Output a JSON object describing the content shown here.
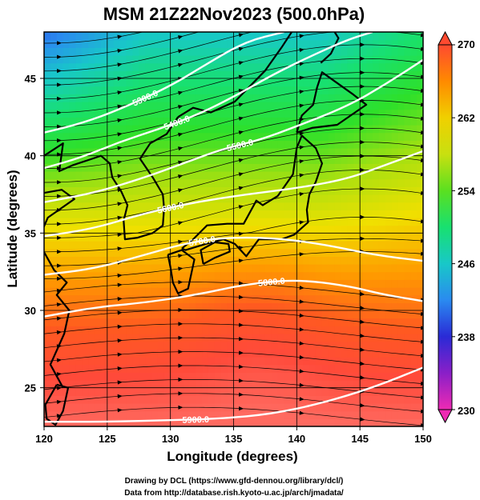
{
  "figure": {
    "title": "MSM 21Z22Nov2023 (500.0hPa)",
    "xlabel": "Longitude (degrees)",
    "ylabel": "Latitude  (degrees)",
    "credit_line1": "Drawing by DCL (https://www.gfd-dennou.org/library/dcl/)",
    "credit_line2": "Data from http://database.rish.kyoto-u.ac.jp/arch/jmadata/"
  },
  "chart_data": {
    "type": "heatmap",
    "xlim": [
      120,
      150
    ],
    "ylim": [
      22.5,
      48
    ],
    "x_ticks": [
      120,
      125,
      130,
      135,
      140,
      145,
      150
    ],
    "y_ticks": [
      25,
      30,
      35,
      40,
      45
    ],
    "grid": true,
    "colorbar": {
      "min": 230,
      "max": 270,
      "ticks": [
        230,
        238,
        246,
        254,
        262,
        270
      ],
      "labels": [
        "230",
        "238",
        "246",
        "254",
        "262",
        "270"
      ],
      "extend": "both"
    },
    "contours": [
      {
        "label": "5300.0",
        "points": [
          [
            120,
            41.5
          ],
          [
            123,
            42.1
          ],
          [
            126,
            43.0
          ],
          [
            130,
            44.5
          ],
          [
            133,
            46.0
          ],
          [
            136,
            47.4
          ],
          [
            139,
            48
          ]
        ]
      },
      {
        "label": "5400.0",
        "points": [
          [
            120,
            39.2
          ],
          [
            123,
            39.9
          ],
          [
            126,
            40.9
          ],
          [
            129,
            41.7
          ],
          [
            132,
            42.6
          ],
          [
            135,
            43.8
          ],
          [
            138,
            45.2
          ],
          [
            141,
            46.4
          ],
          [
            144,
            47.5
          ],
          [
            146,
            48
          ]
        ]
      },
      {
        "label": "5500.0",
        "points": [
          [
            120,
            37.0
          ],
          [
            124,
            37.6
          ],
          [
            128,
            38.6
          ],
          [
            131,
            39.5
          ],
          [
            134,
            40.4
          ],
          [
            137,
            41.0
          ],
          [
            140,
            41.9
          ],
          [
            144,
            43.2
          ],
          [
            147,
            44.6
          ],
          [
            150,
            46.2
          ]
        ]
      },
      {
        "label": "5600.0",
        "points": [
          [
            120,
            34.8
          ],
          [
            124,
            35.3
          ],
          [
            128,
            36.3
          ],
          [
            132,
            37.0
          ],
          [
            136,
            37.5
          ],
          [
            140,
            37.9
          ],
          [
            144,
            38.5
          ],
          [
            147,
            39.4
          ],
          [
            150,
            40.3
          ]
        ]
      },
      {
        "label": "5700.0",
        "points": [
          [
            120,
            32.3
          ],
          [
            124,
            32.7
          ],
          [
            128,
            33.6
          ],
          [
            131,
            34.3
          ],
          [
            134,
            34.7
          ],
          [
            138,
            34.7
          ],
          [
            142,
            34.3
          ],
          [
            146,
            33.6
          ],
          [
            150,
            33.2
          ]
        ]
      },
      {
        "label": "5800.0",
        "points": [
          [
            120,
            29.6
          ],
          [
            124,
            30.2
          ],
          [
            128,
            30.5
          ],
          [
            132,
            31.0
          ],
          [
            136,
            31.7
          ],
          [
            140,
            32.0
          ],
          [
            144,
            31.6
          ],
          [
            147,
            31.0
          ],
          [
            150,
            30.6
          ]
        ]
      },
      {
        "label": "5900.0",
        "points": [
          [
            120,
            22.8
          ],
          [
            125,
            22.8
          ],
          [
            130,
            22.9
          ],
          [
            134,
            23.0
          ],
          [
            138,
            23.3
          ],
          [
            142,
            24.0
          ],
          [
            146,
            25.0
          ],
          [
            150,
            26.3
          ]
        ]
      }
    ]
  },
  "colors": {
    "colormap": [
      "#ee2ab3",
      "#8a1fc8",
      "#2a2ad6",
      "#2a8af0",
      "#18c8c8",
      "#18e070",
      "#2ee02a",
      "#a8e010",
      "#f0e000",
      "#ff9a00",
      "#ff5a20",
      "#ff4a3a",
      "#ff6a60"
    ],
    "contour_line": "#ffffff",
    "streamline": "#000000",
    "coastline": "#000000"
  }
}
